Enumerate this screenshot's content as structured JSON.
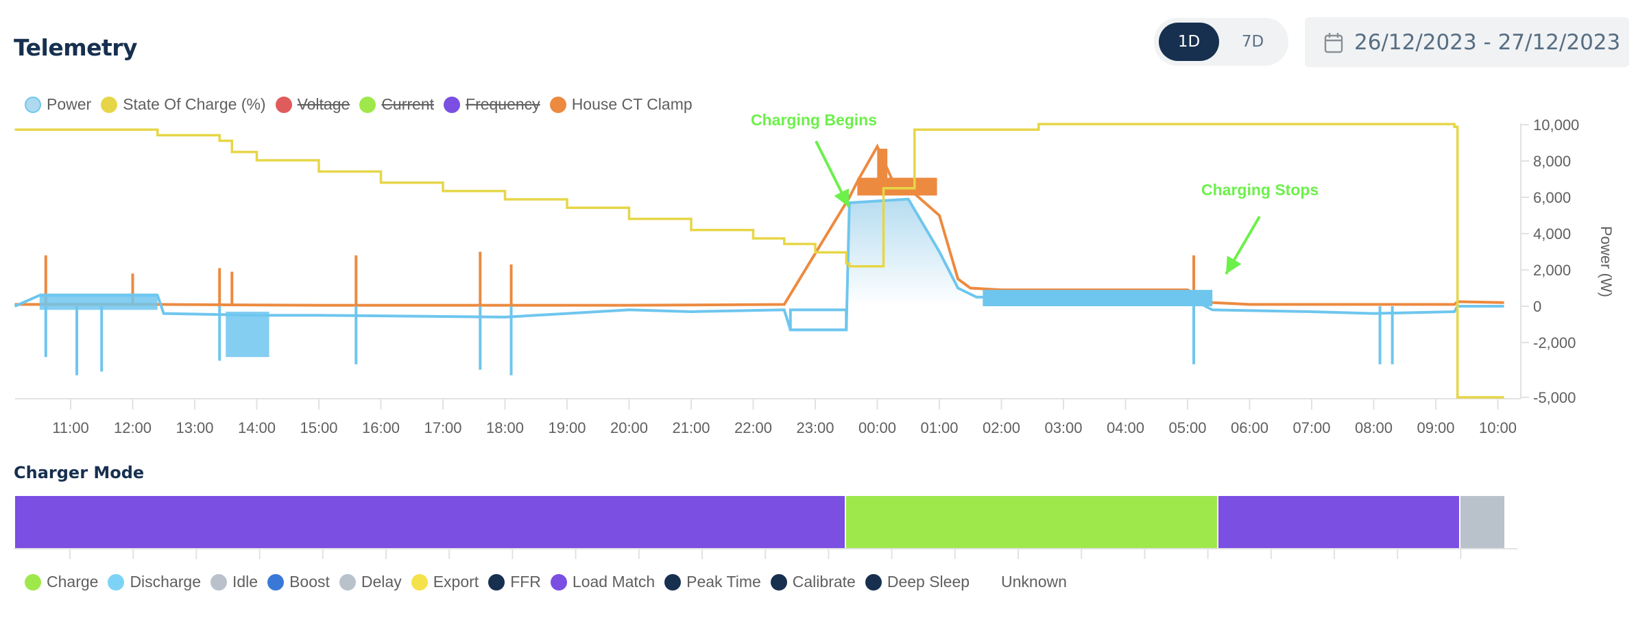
{
  "header": {
    "title": "Telemetry",
    "range_toggle": {
      "options": [
        "1D",
        "7D"
      ],
      "selected": "1D"
    },
    "date_range": "26/12/2023 - 27/12/2023"
  },
  "telemetry_legend": [
    {
      "label": "Power",
      "color": "#aed9ef",
      "border": "#6ec6ee",
      "enabled": true
    },
    {
      "label": "State Of Charge (%)",
      "color": "#e6d647",
      "enabled": true
    },
    {
      "label": "Voltage",
      "color": "#e05c5c",
      "enabled": false
    },
    {
      "label": "Current",
      "color": "#9ee84c",
      "enabled": false
    },
    {
      "label": "Frequency",
      "color": "#7a4fe2",
      "enabled": false
    },
    {
      "label": "House CT Clamp",
      "color": "#ec8a40",
      "enabled": true
    }
  ],
  "annotations": {
    "charging_begins": "Charging Begins",
    "charging_stops": "Charging Stops",
    "color": "#6cf04a"
  },
  "charger_mode": {
    "title": "Charger Mode",
    "segments": [
      {
        "mode": "Load Match",
        "start": "10:06",
        "end": "23:30",
        "color": "#7a4fe2"
      },
      {
        "mode": "Charge",
        "start": "23:30",
        "end": "05:30",
        "color": "#9ee84c"
      },
      {
        "mode": "Load Match",
        "start": "05:30",
        "end": "09:24",
        "color": "#7a4fe2"
      },
      {
        "mode": "Idle",
        "start": "09:24",
        "end": "10:06",
        "color": "#b9c2cb"
      }
    ],
    "legend": [
      {
        "label": "Charge",
        "color": "#9ee84c"
      },
      {
        "label": "Discharge",
        "color": "#7dd3f5"
      },
      {
        "label": "Idle",
        "color": "#b9c2cb"
      },
      {
        "label": "Boost",
        "color": "#3a78d8"
      },
      {
        "label": "Delay",
        "color": "#b9c2cb"
      },
      {
        "label": "Export",
        "color": "#f5e24a"
      },
      {
        "label": "FFR",
        "color": "#17304f"
      },
      {
        "label": "Load Match",
        "color": "#7a4fe2"
      },
      {
        "label": "Peak Time",
        "color": "#17304f"
      },
      {
        "label": "Calibrate",
        "color": "#17304f"
      },
      {
        "label": "Deep Sleep",
        "color": "#17304f"
      },
      {
        "label": "Unknown",
        "color": "transparent"
      }
    ]
  },
  "chart_data": {
    "type": "line",
    "title": "Telemetry",
    "xlabel": "",
    "ylabel": "Power (W)",
    "ylim": [
      -5000,
      10000
    ],
    "yticks": [
      "10,000",
      "8,000",
      "6,000",
      "4,000",
      "2,000",
      "0",
      "-2,000",
      "-5,000"
    ],
    "ytick_values": [
      10000,
      8000,
      6000,
      4000,
      2000,
      0,
      -2000,
      -5000
    ],
    "x_tick_labels": [
      "11:00",
      "12:00",
      "13:00",
      "14:00",
      "15:00",
      "16:00",
      "17:00",
      "18:00",
      "19:00",
      "20:00",
      "21:00",
      "22:00",
      "23:00",
      "00:00",
      "01:00",
      "02:00",
      "03:00",
      "04:00",
      "05:00",
      "06:00",
      "07:00",
      "08:00",
      "09:00",
      "10:00"
    ],
    "x_unit": "hours since 10:00 on 26/12/2023",
    "grid": false,
    "legend_position": "top-left",
    "series": [
      {
        "name": "State Of Charge (%)",
        "color": "#e6d647",
        "x": [
          0.1,
          2.3,
          2.4,
          3.4,
          3.6,
          4.0,
          5.0,
          6.0,
          7.0,
          8.0,
          9.0,
          10.0,
          11.0,
          12.0,
          12.5,
          13.0,
          13.5,
          13.55,
          14.1,
          14.6,
          15.6,
          16.6,
          19.0,
          22.0,
          22.4,
          23.3,
          23.35,
          23.35,
          24.1
        ],
        "y": [
          96,
          96,
          94,
          92,
          88,
          85,
          81,
          77,
          74,
          71,
          68,
          64,
          60,
          57,
          55,
          52,
          48,
          47,
          75,
          96,
          96,
          98,
          98,
          98,
          98,
          97,
          97,
          0,
          0
        ]
      },
      {
        "name": "Power",
        "color": "#6ec6ee",
        "fill": "gradient between 23:30 and 01:00",
        "x": [
          0.1,
          0.5,
          2.4,
          2.5,
          4.0,
          5.0,
          8.0,
          9.0,
          10.0,
          11.0,
          12.5,
          12.6,
          13.5,
          13.55,
          14.5,
          15.0,
          15.3,
          15.6,
          16.0,
          17.0,
          19.0,
          19.4,
          21.0,
          22.0,
          23.3,
          23.35,
          24.1
        ],
        "y": [
          0,
          600,
          600,
          -400,
          -500,
          -500,
          -600,
          -400,
          -200,
          -300,
          -200,
          -1300,
          -1300,
          5700,
          5900,
          3000,
          1000,
          500,
          500,
          500,
          500,
          -200,
          -300,
          -400,
          -300,
          0,
          0
        ]
      },
      {
        "name": "House CT Clamp",
        "color": "#ec8a40",
        "x": [
          0.1,
          2.4,
          5.0,
          10.0,
          12.5,
          13.55,
          13.7,
          14.0,
          14.3,
          14.5,
          15.0,
          15.3,
          15.5,
          16.0,
          19.0,
          19.4,
          20.0,
          23.3,
          23.35,
          24.1
        ],
        "y": [
          100,
          100,
          50,
          50,
          100,
          6000,
          7000,
          8800,
          6500,
          6500,
          5000,
          1500,
          1000,
          900,
          900,
          200,
          100,
          100,
          250,
          200
        ]
      },
      {
        "name": "Voltage",
        "hidden": true
      },
      {
        "name": "Current",
        "hidden": true
      },
      {
        "name": "Frequency",
        "hidden": true
      }
    ],
    "spikes": {
      "House CT Clamp": [
        [
          0.6,
          2800
        ],
        [
          2.0,
          1800
        ],
        [
          3.4,
          2100
        ],
        [
          3.6,
          1900
        ],
        [
          5.6,
          2800
        ],
        [
          7.6,
          3000
        ],
        [
          8.1,
          2300
        ],
        [
          19.1,
          2800
        ]
      ],
      "Power": [
        [
          0.6,
          -2800
        ],
        [
          1.1,
          -3800
        ],
        [
          1.5,
          -3600
        ],
        [
          3.4,
          -3000
        ],
        [
          5.6,
          -3200
        ],
        [
          7.6,
          -3500
        ],
        [
          8.1,
          -3800
        ],
        [
          19.1,
          -3200
        ],
        [
          22.1,
          -3200
        ],
        [
          22.3,
          -3200
        ]
      ]
    }
  }
}
